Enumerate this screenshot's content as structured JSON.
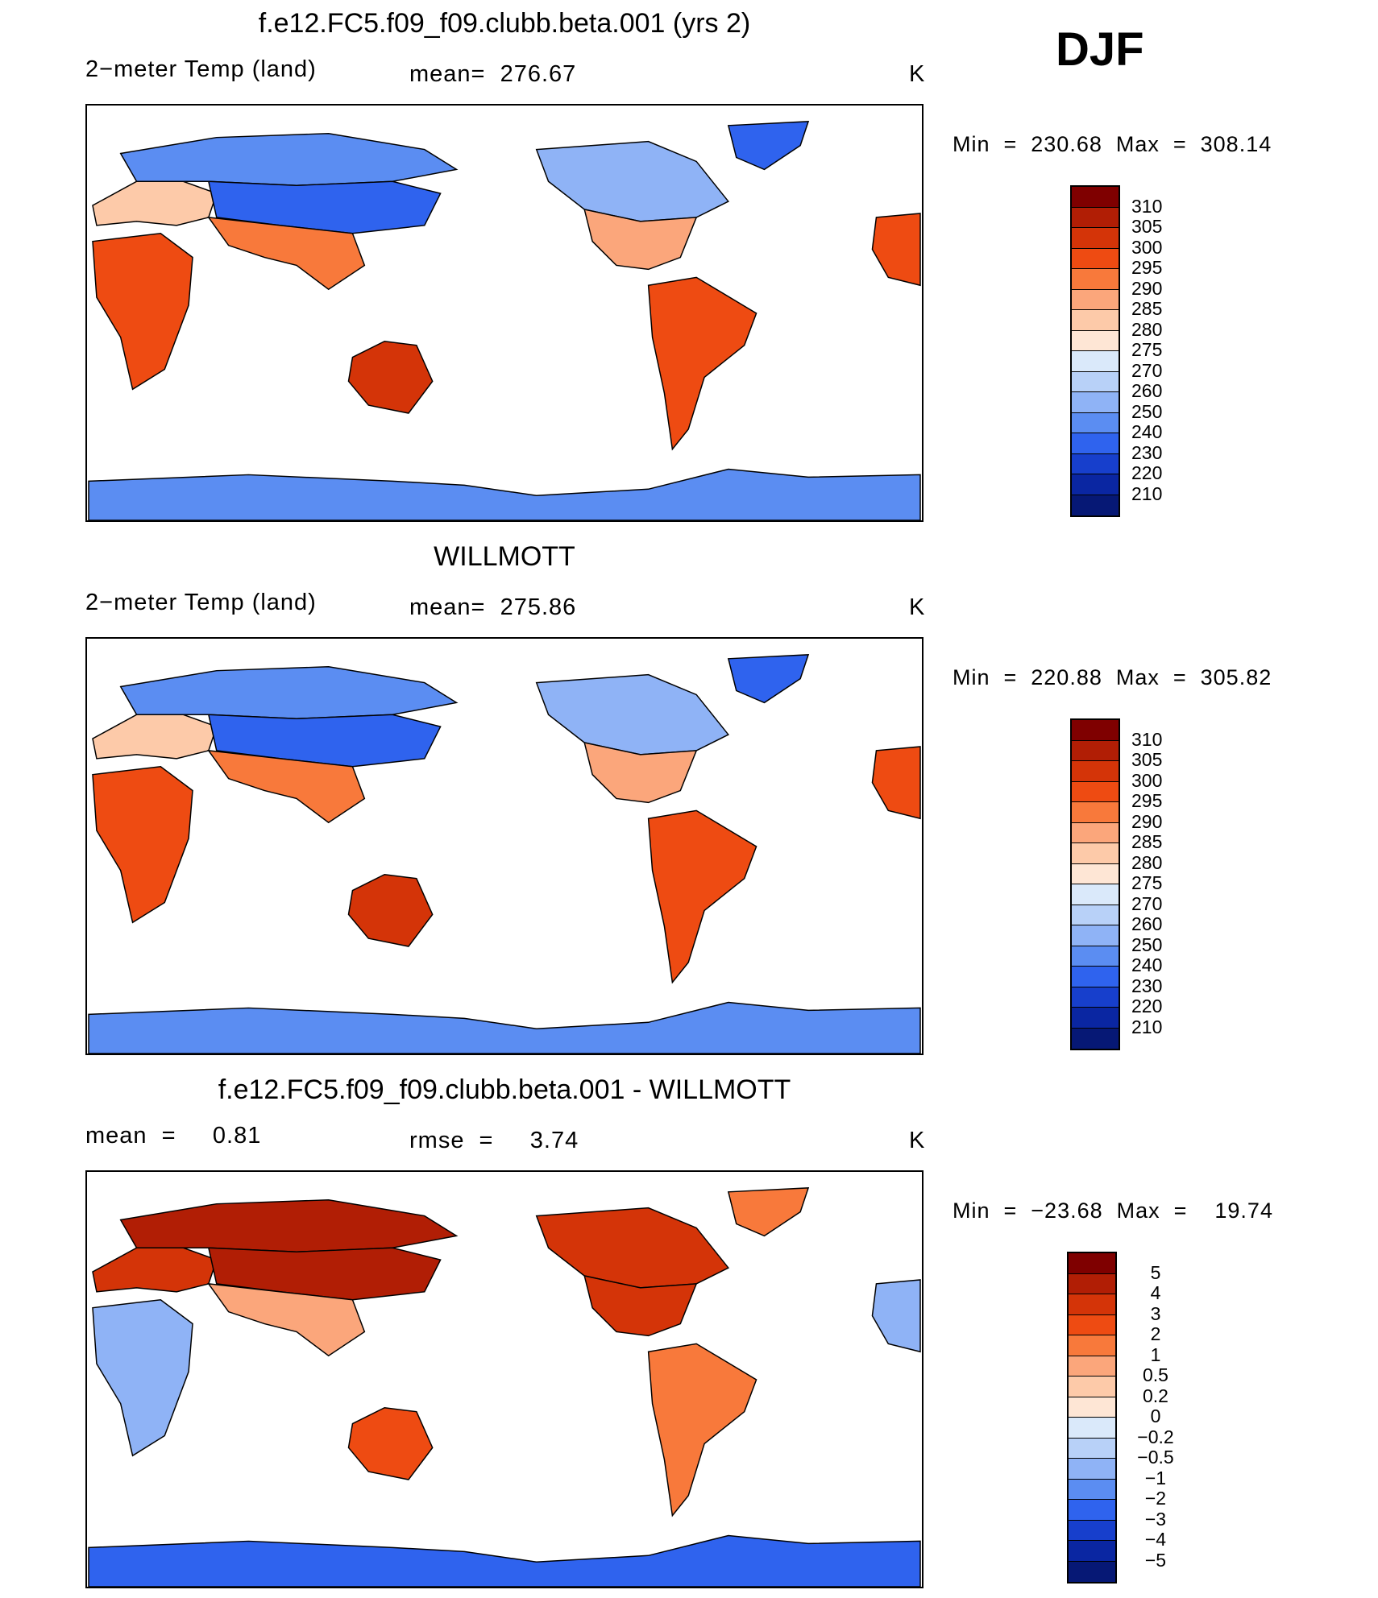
{
  "season_label": "DJF",
  "panels": [
    {
      "title": "f.e12.FC5.f09_f09.clubb.beta.001 (yrs 2)",
      "variable": "2−meter Temp (land)",
      "stat": "mean=  276.67",
      "units": "K",
      "minmax": "Min  =  230.68  Max  =  308.14",
      "scheme": "abs"
    },
    {
      "title": "WILLMOTT",
      "variable": "2−meter Temp (land)",
      "stat": "mean=  275.86",
      "units": "K",
      "minmax": "Min  =  220.88  Max  =  305.82",
      "scheme": "abs"
    },
    {
      "title": "f.e12.FC5.f09_f09.clubb.beta.001 - WILLMOTT",
      "variable": "mean  =     0.81",
      "stat": "rmse  =     3.74",
      "units": "K",
      "minmax": "Min  =  −23.68  Max  =    19.74",
      "scheme": "diff"
    }
  ],
  "colorbars": {
    "abs": {
      "labels": [
        "310",
        "305",
        "300",
        "295",
        "290",
        "285",
        "280",
        "275",
        "270",
        "260",
        "250",
        "240",
        "230",
        "220",
        "210"
      ],
      "colors": [
        "#7f0000",
        "#b11e05",
        "#d43408",
        "#ee4b12",
        "#f8793b",
        "#fba67b",
        "#fdcaa9",
        "#fee6d5",
        "#dae9fa",
        "#b8d1f8",
        "#8fb3f6",
        "#5b8df2",
        "#2f63ee",
        "#173fcc",
        "#0a26a2",
        "#061875"
      ]
    },
    "diff": {
      "labels": [
        "5",
        "4",
        "3",
        "2",
        "1",
        "0.5",
        "0.2",
        "0",
        "−0.2",
        "−0.5",
        "−1",
        "−2",
        "−3",
        "−4",
        "−5"
      ],
      "colors": [
        "#7f0000",
        "#b11e05",
        "#d43408",
        "#ee4b12",
        "#f8793b",
        "#fba67b",
        "#fdcaa9",
        "#fee6d5",
        "#dae9fa",
        "#b8d1f8",
        "#8fb3f6",
        "#5b8df2",
        "#2f63ee",
        "#173fcc",
        "#0a26a2",
        "#061875"
      ]
    }
  },
  "map_fill": {
    "abs_regions": {
      "africa": "#ee4b12",
      "south_america": "#ee4b12",
      "australia": "#d43408",
      "india_se_asia": "#f8793b",
      "europe": "#fdcaa9",
      "north_russia": "#5b8df2",
      "siberia": "#2f63ee",
      "north_america_north": "#8fb3f6",
      "north_america_south": "#fba67b",
      "greenland": "#2f63ee",
      "antarctica": "#5b8df2"
    },
    "diff_regions": {
      "africa": "#8fb3f6",
      "south_america": "#f8793b",
      "australia": "#ee4b12",
      "india_se_asia": "#fba67b",
      "europe": "#d43408",
      "north_russia": "#b11e05",
      "siberia": "#b11e05",
      "north_america_north": "#d43408",
      "north_america_south": "#d43408",
      "greenland": "#f8793b",
      "antarctica": "#2f63ee"
    }
  }
}
